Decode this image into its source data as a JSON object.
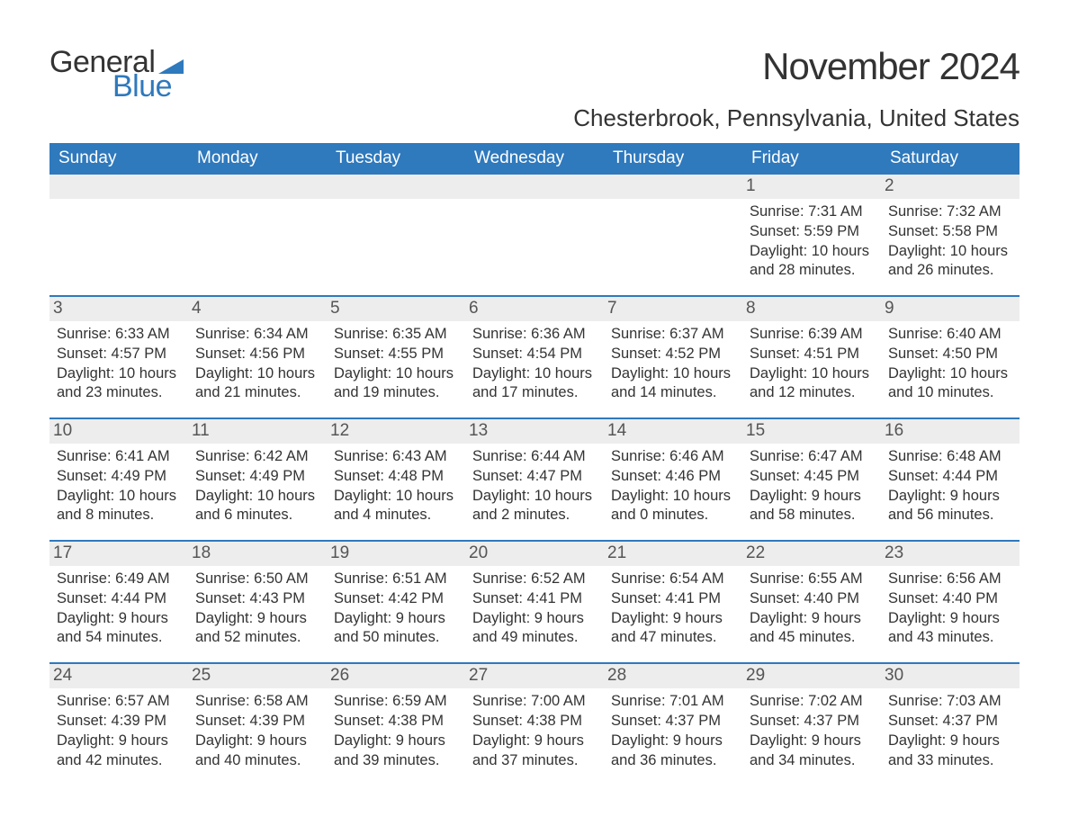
{
  "brand": {
    "general": "General",
    "blue": "Blue",
    "flag_color": "#2f79bd"
  },
  "title": "November 2024",
  "location": "Chesterbrook, Pennsylvania, United States",
  "header_bg": "#2f79bd",
  "daynum_bg": "#ededed",
  "weekdays": [
    "Sunday",
    "Monday",
    "Tuesday",
    "Wednesday",
    "Thursday",
    "Friday",
    "Saturday"
  ],
  "weeks": [
    [
      null,
      null,
      null,
      null,
      null,
      {
        "n": "1",
        "sr": "Sunrise: 7:31 AM",
        "ss": "Sunset: 5:59 PM",
        "d1": "Daylight: 10 hours",
        "d2": "and 28 minutes."
      },
      {
        "n": "2",
        "sr": "Sunrise: 7:32 AM",
        "ss": "Sunset: 5:58 PM",
        "d1": "Daylight: 10 hours",
        "d2": "and 26 minutes."
      }
    ],
    [
      {
        "n": "3",
        "sr": "Sunrise: 6:33 AM",
        "ss": "Sunset: 4:57 PM",
        "d1": "Daylight: 10 hours",
        "d2": "and 23 minutes."
      },
      {
        "n": "4",
        "sr": "Sunrise: 6:34 AM",
        "ss": "Sunset: 4:56 PM",
        "d1": "Daylight: 10 hours",
        "d2": "and 21 minutes."
      },
      {
        "n": "5",
        "sr": "Sunrise: 6:35 AM",
        "ss": "Sunset: 4:55 PM",
        "d1": "Daylight: 10 hours",
        "d2": "and 19 minutes."
      },
      {
        "n": "6",
        "sr": "Sunrise: 6:36 AM",
        "ss": "Sunset: 4:54 PM",
        "d1": "Daylight: 10 hours",
        "d2": "and 17 minutes."
      },
      {
        "n": "7",
        "sr": "Sunrise: 6:37 AM",
        "ss": "Sunset: 4:52 PM",
        "d1": "Daylight: 10 hours",
        "d2": "and 14 minutes."
      },
      {
        "n": "8",
        "sr": "Sunrise: 6:39 AM",
        "ss": "Sunset: 4:51 PM",
        "d1": "Daylight: 10 hours",
        "d2": "and 12 minutes."
      },
      {
        "n": "9",
        "sr": "Sunrise: 6:40 AM",
        "ss": "Sunset: 4:50 PM",
        "d1": "Daylight: 10 hours",
        "d2": "and 10 minutes."
      }
    ],
    [
      {
        "n": "10",
        "sr": "Sunrise: 6:41 AM",
        "ss": "Sunset: 4:49 PM",
        "d1": "Daylight: 10 hours",
        "d2": "and 8 minutes."
      },
      {
        "n": "11",
        "sr": "Sunrise: 6:42 AM",
        "ss": "Sunset: 4:49 PM",
        "d1": "Daylight: 10 hours",
        "d2": "and 6 minutes."
      },
      {
        "n": "12",
        "sr": "Sunrise: 6:43 AM",
        "ss": "Sunset: 4:48 PM",
        "d1": "Daylight: 10 hours",
        "d2": "and 4 minutes."
      },
      {
        "n": "13",
        "sr": "Sunrise: 6:44 AM",
        "ss": "Sunset: 4:47 PM",
        "d1": "Daylight: 10 hours",
        "d2": "and 2 minutes."
      },
      {
        "n": "14",
        "sr": "Sunrise: 6:46 AM",
        "ss": "Sunset: 4:46 PM",
        "d1": "Daylight: 10 hours",
        "d2": "and 0 minutes."
      },
      {
        "n": "15",
        "sr": "Sunrise: 6:47 AM",
        "ss": "Sunset: 4:45 PM",
        "d1": "Daylight: 9 hours",
        "d2": "and 58 minutes."
      },
      {
        "n": "16",
        "sr": "Sunrise: 6:48 AM",
        "ss": "Sunset: 4:44 PM",
        "d1": "Daylight: 9 hours",
        "d2": "and 56 minutes."
      }
    ],
    [
      {
        "n": "17",
        "sr": "Sunrise: 6:49 AM",
        "ss": "Sunset: 4:44 PM",
        "d1": "Daylight: 9 hours",
        "d2": "and 54 minutes."
      },
      {
        "n": "18",
        "sr": "Sunrise: 6:50 AM",
        "ss": "Sunset: 4:43 PM",
        "d1": "Daylight: 9 hours",
        "d2": "and 52 minutes."
      },
      {
        "n": "19",
        "sr": "Sunrise: 6:51 AM",
        "ss": "Sunset: 4:42 PM",
        "d1": "Daylight: 9 hours",
        "d2": "and 50 minutes."
      },
      {
        "n": "20",
        "sr": "Sunrise: 6:52 AM",
        "ss": "Sunset: 4:41 PM",
        "d1": "Daylight: 9 hours",
        "d2": "and 49 minutes."
      },
      {
        "n": "21",
        "sr": "Sunrise: 6:54 AM",
        "ss": "Sunset: 4:41 PM",
        "d1": "Daylight: 9 hours",
        "d2": "and 47 minutes."
      },
      {
        "n": "22",
        "sr": "Sunrise: 6:55 AM",
        "ss": "Sunset: 4:40 PM",
        "d1": "Daylight: 9 hours",
        "d2": "and 45 minutes."
      },
      {
        "n": "23",
        "sr": "Sunrise: 6:56 AM",
        "ss": "Sunset: 4:40 PM",
        "d1": "Daylight: 9 hours",
        "d2": "and 43 minutes."
      }
    ],
    [
      {
        "n": "24",
        "sr": "Sunrise: 6:57 AM",
        "ss": "Sunset: 4:39 PM",
        "d1": "Daylight: 9 hours",
        "d2": "and 42 minutes."
      },
      {
        "n": "25",
        "sr": "Sunrise: 6:58 AM",
        "ss": "Sunset: 4:39 PM",
        "d1": "Daylight: 9 hours",
        "d2": "and 40 minutes."
      },
      {
        "n": "26",
        "sr": "Sunrise: 6:59 AM",
        "ss": "Sunset: 4:38 PM",
        "d1": "Daylight: 9 hours",
        "d2": "and 39 minutes."
      },
      {
        "n": "27",
        "sr": "Sunrise: 7:00 AM",
        "ss": "Sunset: 4:38 PM",
        "d1": "Daylight: 9 hours",
        "d2": "and 37 minutes."
      },
      {
        "n": "28",
        "sr": "Sunrise: 7:01 AM",
        "ss": "Sunset: 4:37 PM",
        "d1": "Daylight: 9 hours",
        "d2": "and 36 minutes."
      },
      {
        "n": "29",
        "sr": "Sunrise: 7:02 AM",
        "ss": "Sunset: 4:37 PM",
        "d1": "Daylight: 9 hours",
        "d2": "and 34 minutes."
      },
      {
        "n": "30",
        "sr": "Sunrise: 7:03 AM",
        "ss": "Sunset: 4:37 PM",
        "d1": "Daylight: 9 hours",
        "d2": "and 33 minutes."
      }
    ]
  ]
}
